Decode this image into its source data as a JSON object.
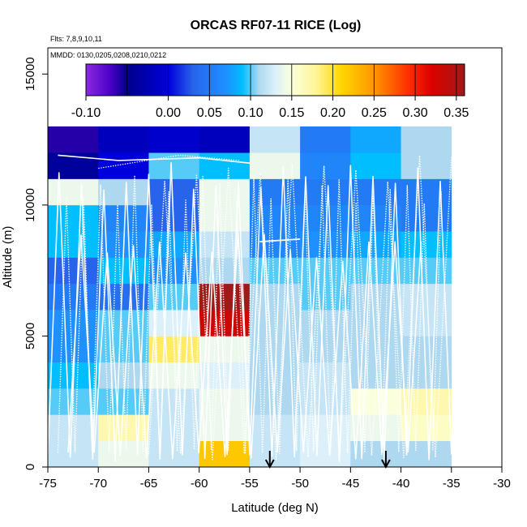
{
  "chart_data": {
    "type": "heatmap",
    "title": "ORCAS RF07-11 RICE (Log)",
    "flights_note": "Flts: 7,8,9,10,11",
    "dates_note": "MMDD: 0130,0205,0208,0210,0212",
    "xlabel": "Latitude (deg N)",
    "ylabel": "Altitude (m)",
    "xlim": [
      -75,
      -30
    ],
    "ylim": [
      0,
      16000
    ],
    "x_ticks": [
      -75,
      -70,
      -65,
      -60,
      -55,
      -50,
      -45,
      -40,
      -35,
      -30
    ],
    "x_tick_labels": [
      "-75",
      "-70",
      "-65",
      "-60",
      "-55",
      "-50",
      "-45",
      "-40",
      "-35",
      "-30"
    ],
    "y_ticks": [
      0,
      5000,
      10000,
      15000
    ],
    "y_tick_labels": [
      "0",
      "5000",
      "10000",
      "15000"
    ],
    "colorbar": {
      "range": [
        -0.1,
        0.36
      ],
      "ticks": [
        -0.1,
        0.0,
        0.05,
        0.1,
        0.15,
        0.2,
        0.25,
        0.3,
        0.35
      ],
      "tick_labels": [
        "-0.10",
        "0.00",
        "0.05",
        "0.10",
        "0.15",
        "0.20",
        "0.25",
        "0.30",
        "0.35"
      ],
      "divisions": [
        -0.1,
        -0.05,
        0.0,
        0.05,
        0.1,
        0.15,
        0.2,
        0.25,
        0.3,
        0.35
      ]
    },
    "grid": {
      "lat_edges": [
        -75,
        -70,
        -65,
        -60,
        -55,
        -50,
        -45,
        -40,
        -35
      ],
      "alt_step": 1000,
      "alt_max": 12000,
      "values": [
        [
          0.12,
          0.14,
          0.12,
          0.22,
          0.12,
          0.13,
          0.11,
          0.11
        ],
        [
          0.12,
          0.17,
          0.12,
          0.14,
          0.12,
          0.13,
          0.14,
          0.16
        ],
        [
          0.1,
          0.1,
          0.12,
          0.14,
          0.11,
          0.12,
          0.15,
          0.17
        ],
        [
          0.09,
          0.11,
          0.14,
          0.13,
          0.11,
          0.12,
          0.11,
          0.11
        ],
        [
          0.07,
          0.1,
          0.19,
          0.14,
          0.11,
          0.11,
          0.11,
          0.11
        ],
        [
          0.07,
          0.1,
          0.13,
          0.33,
          0.11,
          0.11,
          0.11,
          0.12
        ],
        [
          0.05,
          0.04,
          0.1,
          0.36,
          0.11,
          0.1,
          0.11,
          0.12
        ],
        [
          0.03,
          0.09,
          0.07,
          0.11,
          0.1,
          0.1,
          0.1,
          0.1
        ],
        [
          0.09,
          0.07,
          0.08,
          0.12,
          0.06,
          0.07,
          0.08,
          0.09
        ],
        [
          0.09,
          0.06,
          0.03,
          0.14,
          0.06,
          0.06,
          0.06,
          0.05
        ],
        [
          0.14,
          0.11,
          0.03,
          0.14,
          0.05,
          0.05,
          0.05,
          0.05
        ],
        [
          -0.04,
          0.0,
          0.1,
          0.09,
          0.14,
          0.06,
          0.09,
          0.11
        ],
        [
          -0.06,
          -0.02,
          -0.01,
          -0.02,
          0.12,
          0.05,
          0.08,
          0.11
        ]
      ]
    },
    "arrows_lat": [
      -53,
      -41.5
    ]
  }
}
